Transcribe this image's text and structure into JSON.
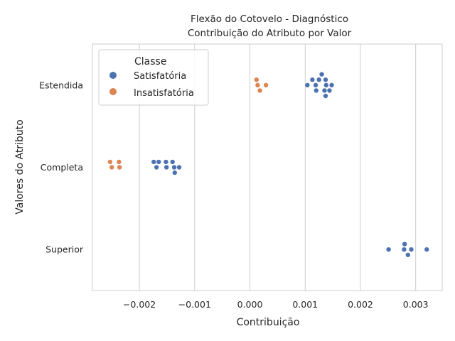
{
  "chart_data": {
    "type": "scatter",
    "subtype": "swarm",
    "title_line1": "Flexão do Cotovelo - Diagnóstico",
    "title_line2": "Contribuição do Atributo por Valor",
    "xlabel": "Contribuição",
    "ylabel": "Valores do Atributo",
    "xlim": [
      -0.00285,
      0.00348
    ],
    "x_ticks": [
      -0.002,
      -0.001,
      0.0,
      0.001,
      0.002,
      0.003
    ],
    "x_tick_labels": [
      "−0.002",
      "−0.001",
      "0.000",
      "0.001",
      "0.002",
      "0.003"
    ],
    "categories": [
      "Estendida",
      "Completa",
      "Superior"
    ],
    "grid": "vertical",
    "legend": {
      "title": "Classe",
      "placement": "top-left",
      "entries": [
        "Satisfatória",
        "Insatisfatória"
      ]
    },
    "series": [
      {
        "name": "Satisfatória",
        "color": "#4c72b0",
        "points": [
          {
            "category": "Estendida",
            "x": 0.00138
          },
          {
            "category": "Estendida",
            "x": 0.00137
          },
          {
            "category": "Estendida",
            "x": 0.00119
          },
          {
            "category": "Estendida",
            "x": 0.00148
          },
          {
            "category": "Estendida",
            "x": 0.00104
          },
          {
            "category": "Estendida",
            "x": 0.00113
          },
          {
            "category": "Estendida",
            "x": 0.00125
          },
          {
            "category": "Estendida",
            "x": 0.00135
          },
          {
            "category": "Estendida",
            "x": 0.00144
          },
          {
            "category": "Estendida",
            "x": 0.0012
          },
          {
            "category": "Estendida",
            "x": 0.0013
          },
          {
            "category": "Estendida",
            "x": 0.00137
          },
          {
            "category": "Completa",
            "x": -0.00169
          },
          {
            "category": "Completa",
            "x": -0.00151
          },
          {
            "category": "Completa",
            "x": -0.00137
          },
          {
            "category": "Completa",
            "x": -0.00174
          },
          {
            "category": "Completa",
            "x": -0.00165
          },
          {
            "category": "Completa",
            "x": -0.00152
          },
          {
            "category": "Completa",
            "x": -0.0014
          },
          {
            "category": "Completa",
            "x": -0.00128
          },
          {
            "category": "Completa",
            "x": -0.00136
          },
          {
            "category": "Superior",
            "x": 0.00279
          },
          {
            "category": "Superior",
            "x": 0.00251
          },
          {
            "category": "Superior",
            "x": 0.0028
          },
          {
            "category": "Superior",
            "x": 0.00292
          },
          {
            "category": "Superior",
            "x": 0.0032
          },
          {
            "category": "Superior",
            "x": 0.00286
          }
        ]
      },
      {
        "name": "Insatisfatória",
        "color": "#dd8452",
        "points": [
          {
            "category": "Estendida",
            "x": 0.00014
          },
          {
            "category": "Estendida",
            "x": 0.00012
          },
          {
            "category": "Estendida",
            "x": 0.00029
          },
          {
            "category": "Estendida",
            "x": 0.00018
          },
          {
            "category": "Completa",
            "x": -0.0025
          },
          {
            "category": "Completa",
            "x": -0.00236
          },
          {
            "category": "Completa",
            "x": -0.00253
          },
          {
            "category": "Completa",
            "x": -0.00237
          }
        ]
      }
    ]
  }
}
